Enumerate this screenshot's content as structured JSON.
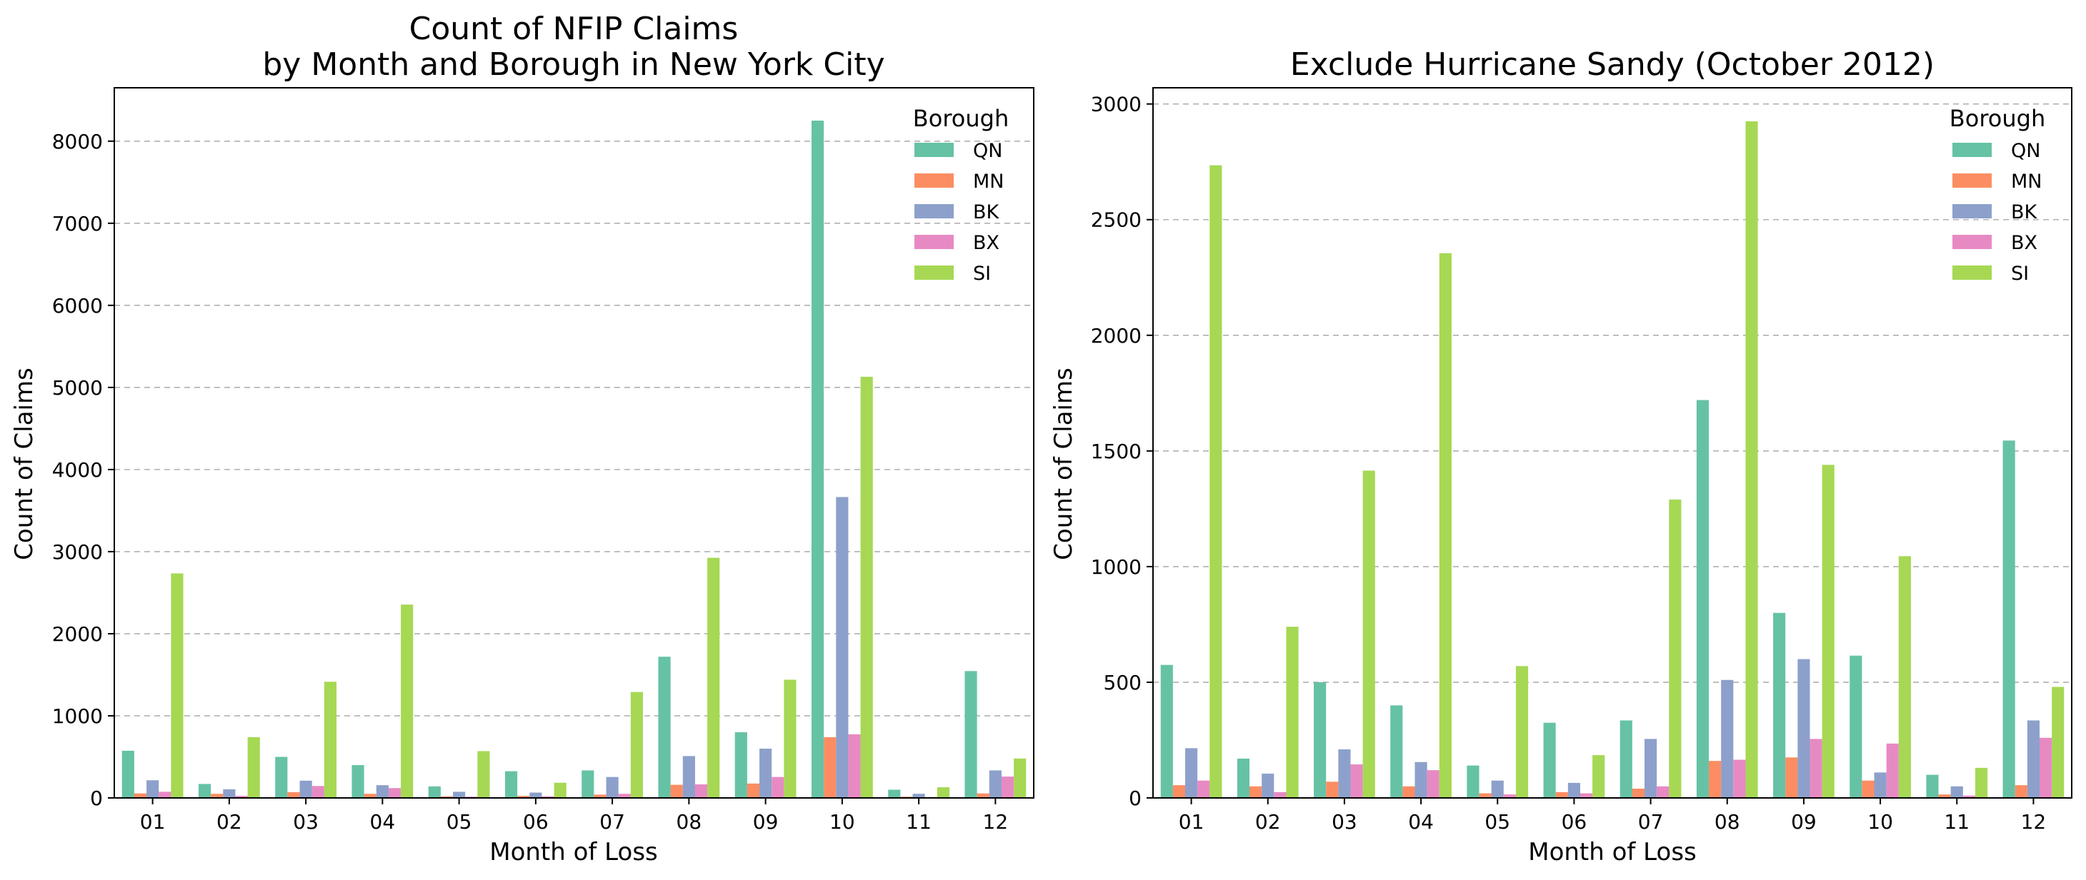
{
  "chart_data": [
    {
      "type": "bar",
      "title_lines": [
        "Count of NFIP Claims",
        "by Month and Borough in New York City"
      ],
      "xlabel": "Month of Loss",
      "ylabel": "Count of Claims",
      "ylim": [
        0,
        8650
      ],
      "yticks": [
        "0",
        "1000",
        "2000",
        "3000",
        "4000",
        "5000",
        "6000",
        "7000",
        "8000"
      ],
      "grid": true,
      "legend": {
        "title": "Borough",
        "placement": "top-right"
      },
      "categories": [
        "01",
        "02",
        "03",
        "04",
        "05",
        "06",
        "07",
        "08",
        "09",
        "10",
        "11",
        "12"
      ],
      "series": [
        {
          "name": "QN",
          "color": "#66c2a5",
          "values": [
            575,
            170,
            500,
            400,
            140,
            325,
            335,
            1720,
            800,
            8250,
            100,
            1545
          ]
        },
        {
          "name": "MN",
          "color": "#fc8d62",
          "values": [
            55,
            50,
            70,
            50,
            20,
            25,
            40,
            160,
            175,
            740,
            15,
            55
          ]
        },
        {
          "name": "BK",
          "color": "#8da0cb",
          "values": [
            215,
            105,
            210,
            155,
            75,
            65,
            255,
            510,
            600,
            3665,
            50,
            335
          ]
        },
        {
          "name": "BX",
          "color": "#e78ac3",
          "values": [
            75,
            25,
            145,
            120,
            15,
            20,
            50,
            165,
            255,
            775,
            10,
            260
          ]
        },
        {
          "name": "SI",
          "color": "#a6d854",
          "values": [
            2735,
            740,
            1415,
            2355,
            570,
            185,
            1290,
            2925,
            1440,
            5130,
            130,
            480
          ]
        }
      ]
    },
    {
      "type": "bar",
      "title_lines": [
        "Exclude Hurricane Sandy (October 2012)"
      ],
      "xlabel": "Month of Loss",
      "ylabel": "Count of Claims",
      "ylim": [
        0,
        3070
      ],
      "yticks": [
        "0",
        "500",
        "1000",
        "1500",
        "2000",
        "2500",
        "3000"
      ],
      "grid": true,
      "legend": {
        "title": "Borough",
        "placement": "top-right"
      },
      "categories": [
        "01",
        "02",
        "03",
        "04",
        "05",
        "06",
        "07",
        "08",
        "09",
        "10",
        "11",
        "12"
      ],
      "series": [
        {
          "name": "QN",
          "color": "#66c2a5",
          "values": [
            575,
            170,
            500,
            400,
            140,
            325,
            335,
            1720,
            800,
            615,
            100,
            1545
          ]
        },
        {
          "name": "MN",
          "color": "#fc8d62",
          "values": [
            55,
            50,
            70,
            50,
            20,
            25,
            40,
            160,
            175,
            75,
            15,
            55
          ]
        },
        {
          "name": "BK",
          "color": "#8da0cb",
          "values": [
            215,
            105,
            210,
            155,
            75,
            65,
            255,
            510,
            600,
            110,
            50,
            335
          ]
        },
        {
          "name": "BX",
          "color": "#e78ac3",
          "values": [
            75,
            25,
            145,
            120,
            15,
            20,
            50,
            165,
            255,
            235,
            10,
            260
          ]
        },
        {
          "name": "SI",
          "color": "#a6d854",
          "values": [
            2735,
            740,
            1415,
            2355,
            570,
            185,
            1290,
            2925,
            1440,
            1045,
            130,
            480
          ]
        }
      ]
    }
  ]
}
